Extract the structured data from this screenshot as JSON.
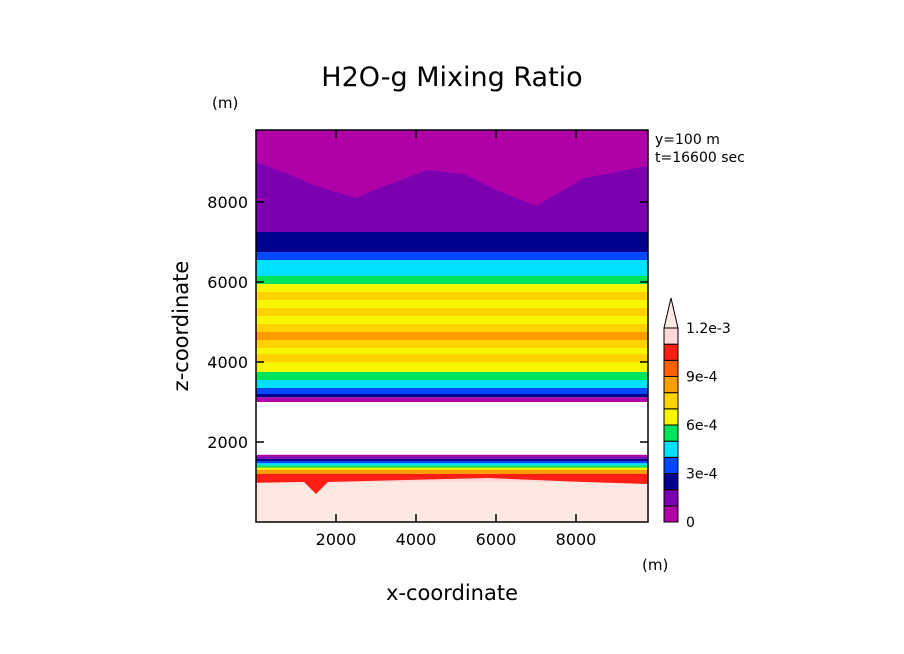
{
  "chart_data": {
    "type": "heatmap",
    "title": "H2O-g Mixing Ratio",
    "xlabel": "x-coordinate",
    "ylabel": "z-coordinate",
    "x_unit": "(m)",
    "y_unit": "(m)",
    "annotations": [
      "y=100 m",
      "t=16600 sec"
    ],
    "xlim": [
      0,
      9800
    ],
    "ylim": [
      0,
      9800
    ],
    "xticks": [
      2000,
      4000,
      6000,
      8000
    ],
    "yticks": [
      2000,
      4000,
      6000,
      8000
    ],
    "colorbar": {
      "levels": [
        0,
        0.0001,
        0.0002,
        0.0003,
        0.0004,
        0.0005,
        0.0006,
        0.0007,
        0.0008,
        0.0009,
        0.001,
        0.0011,
        0.0012
      ],
      "tick_labels": [
        "0",
        "3e-4",
        "6e-4",
        "9e-4",
        "1.2e-3"
      ],
      "colors": [
        "#b000a8",
        "#7a00b0",
        "#00008e",
        "#0048ff",
        "#00e0ff",
        "#00e45a",
        "#f6f600",
        "#ffd200",
        "#ff9c00",
        "#ff6000",
        "#ff1e14",
        "#ffd8d8",
        "#ffe8e2"
      ],
      "extend": "max"
    },
    "bands": [
      {
        "z": [
          0,
          1000
        ],
        "value": 0.00125
      },
      {
        "z": [
          1000,
          1100
        ],
        "value": 0.00115
      },
      {
        "z": [
          1100,
          1200
        ],
        "value": 0.00105
      },
      {
        "z": [
          1200,
          1300
        ],
        "value": 0.00085
      },
      {
        "z": [
          1300,
          1360
        ],
        "value": 0.00065
      },
      {
        "z": [
          1360,
          1420
        ],
        "value": 0.00055
      },
      {
        "z": [
          1420,
          1470
        ],
        "value": 0.00045
      },
      {
        "z": [
          1470,
          1520
        ],
        "value": 0.00035
      },
      {
        "z": [
          1520,
          1580
        ],
        "value": 0.00025
      },
      {
        "z": [
          1580,
          1640
        ],
        "value": 0.00015
      },
      {
        "z": [
          1640,
          1680
        ],
        "value": 5e-05
      },
      {
        "z": [
          3000,
          3120
        ],
        "value": 5e-05
      },
      {
        "z": [
          3120,
          3200
        ],
        "value": 0.00025
      },
      {
        "z": [
          3200,
          3350
        ],
        "value": 0.00035
      },
      {
        "z": [
          3350,
          3550
        ],
        "value": 0.00045
      },
      {
        "z": [
          3550,
          3750
        ],
        "value": 0.00055
      },
      {
        "z": [
          3750,
          4000
        ],
        "value": 0.00065
      },
      {
        "z": [
          4000,
          4200
        ],
        "value": 0.00075
      },
      {
        "z": [
          4200,
          4350
        ],
        "value": 0.00065
      },
      {
        "z": [
          4350,
          4550
        ],
        "value": 0.00075
      },
      {
        "z": [
          4550,
          4750
        ],
        "value": 0.00085
      },
      {
        "z": [
          4750,
          4950
        ],
        "value": 0.00075
      },
      {
        "z": [
          4950,
          5150
        ],
        "value": 0.00065
      },
      {
        "z": [
          5150,
          5350
        ],
        "value": 0.00075
      },
      {
        "z": [
          5350,
          5550
        ],
        "value": 0.00065
      },
      {
        "z": [
          5550,
          5750
        ],
        "value": 0.00075
      },
      {
        "z": [
          5750,
          5950
        ],
        "value": 0.00065
      },
      {
        "z": [
          5950,
          6150
        ],
        "value": 0.00055
      },
      {
        "z": [
          6150,
          6350
        ],
        "value": 0.00045
      },
      {
        "z": [
          6350,
          6550
        ],
        "value": 0.00045
      },
      {
        "z": [
          6550,
          6750
        ],
        "value": 0.00035
      },
      {
        "z": [
          6750,
          7250
        ],
        "value": 0.00025
      },
      {
        "z": [
          7250,
          8050
        ],
        "value": 0.00015
      },
      {
        "z": [
          8050,
          8900
        ],
        "value": 5e-05
      },
      {
        "z": [
          8900,
          9800
        ],
        "value": 5e-05
      }
    ]
  }
}
